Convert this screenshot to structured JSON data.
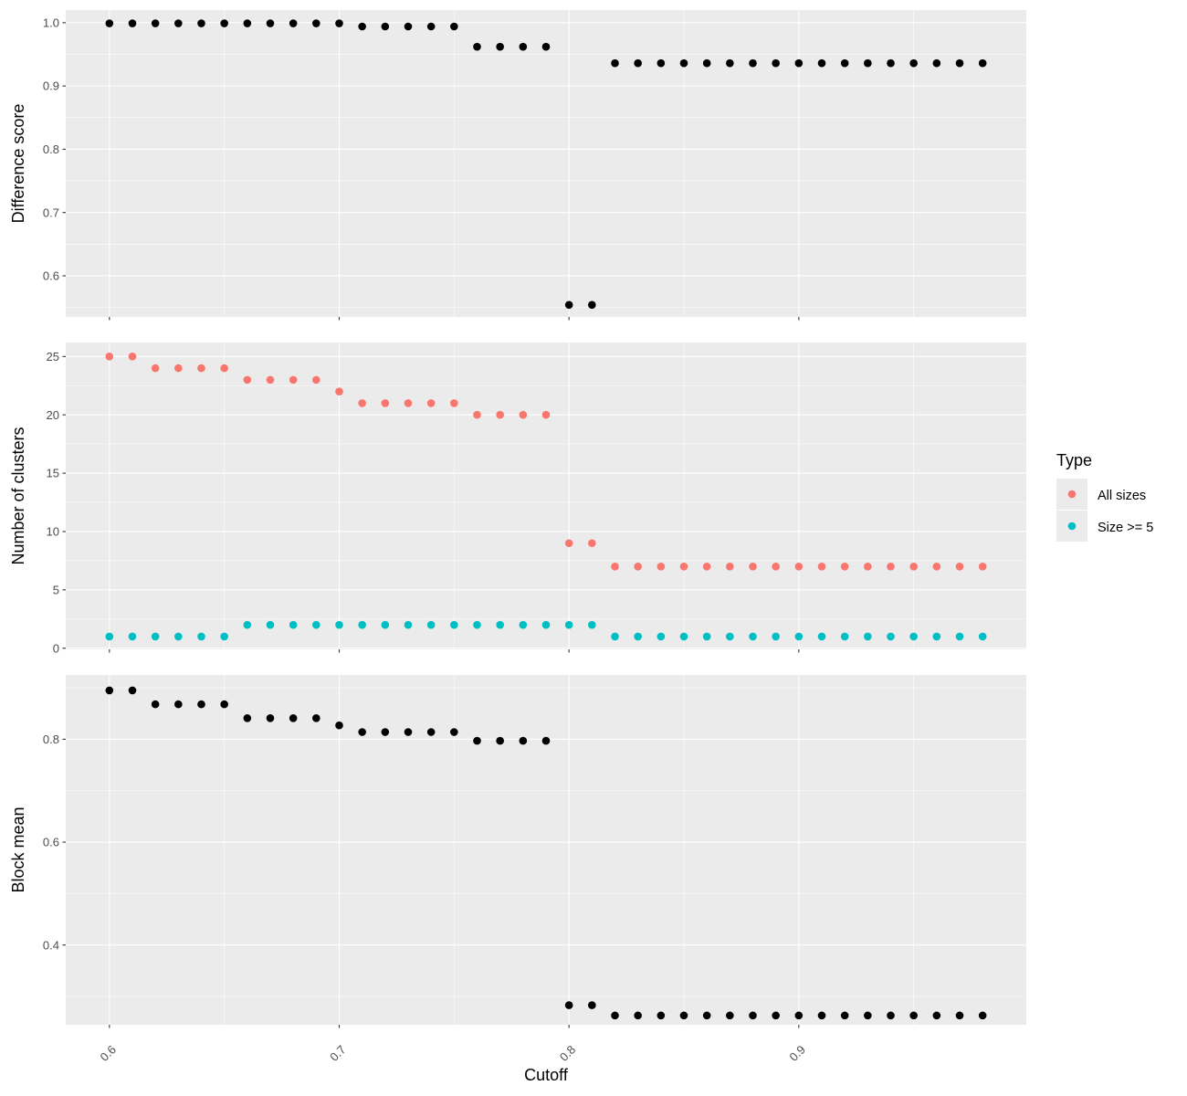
{
  "chart_data": [
    {
      "type": "scatter",
      "panel": "difference",
      "ylabel": "Difference score",
      "ylim": [
        0.535,
        1.02
      ],
      "yticks": [
        0.6,
        0.7,
        0.8,
        0.9,
        1.0
      ],
      "ytick_labels": [
        "0.6",
        "0.7",
        "0.8",
        "0.9",
        "1.0"
      ],
      "x": [
        0.6,
        0.61,
        0.62,
        0.63,
        0.64,
        0.65,
        0.66,
        0.67,
        0.68,
        0.69,
        0.7,
        0.71,
        0.72,
        0.73,
        0.74,
        0.75,
        0.76,
        0.77,
        0.78,
        0.79,
        0.8,
        0.81,
        0.82,
        0.83,
        0.84,
        0.85,
        0.86,
        0.87,
        0.88,
        0.89,
        0.9,
        0.91,
        0.92,
        0.93,
        0.94,
        0.95,
        0.96,
        0.97,
        0.98
      ],
      "series": [
        {
          "color": "#000000",
          "values": [
            0.999,
            0.999,
            0.999,
            0.999,
            0.999,
            0.999,
            0.999,
            0.999,
            0.999,
            0.999,
            0.999,
            0.994,
            0.994,
            0.994,
            0.994,
            0.994,
            0.962,
            0.962,
            0.962,
            0.962,
            0.554,
            0.554,
            0.936,
            0.936,
            0.936,
            0.936,
            0.936,
            0.936,
            0.936,
            0.936,
            0.936,
            0.936,
            0.936,
            0.936,
            0.936,
            0.936,
            0.936,
            0.936,
            0.936
          ]
        }
      ]
    },
    {
      "type": "scatter",
      "panel": "clusters",
      "ylabel": "Number of clusters",
      "ylim": [
        -0.1,
        26.2
      ],
      "yticks": [
        0,
        5,
        10,
        15,
        20,
        25
      ],
      "ytick_labels": [
        "0",
        "5",
        "10",
        "15",
        "20",
        "25"
      ],
      "x": [
        0.6,
        0.61,
        0.62,
        0.63,
        0.64,
        0.65,
        0.66,
        0.67,
        0.68,
        0.69,
        0.7,
        0.71,
        0.72,
        0.73,
        0.74,
        0.75,
        0.76,
        0.77,
        0.78,
        0.79,
        0.8,
        0.81,
        0.82,
        0.83,
        0.84,
        0.85,
        0.86,
        0.87,
        0.88,
        0.89,
        0.9,
        0.91,
        0.92,
        0.93,
        0.94,
        0.95,
        0.96,
        0.97,
        0.98
      ],
      "series": [
        {
          "name": "All sizes",
          "color": "#F8766D",
          "values": [
            25,
            25,
            24,
            24,
            24,
            24,
            23,
            23,
            23,
            23,
            22,
            21,
            21,
            21,
            21,
            21,
            20,
            20,
            20,
            20,
            9,
            9,
            7,
            7,
            7,
            7,
            7,
            7,
            7,
            7,
            7,
            7,
            7,
            7,
            7,
            7,
            7,
            7,
            7
          ]
        },
        {
          "name": "Size >= 5",
          "color": "#00BFC4",
          "values": [
            1,
            1,
            1,
            1,
            1,
            1,
            2,
            2,
            2,
            2,
            2,
            2,
            2,
            2,
            2,
            2,
            2,
            2,
            2,
            2,
            2,
            2,
            1,
            1,
            1,
            1,
            1,
            1,
            1,
            1,
            1,
            1,
            1,
            1,
            1,
            1,
            1,
            1,
            1
          ]
        }
      ]
    },
    {
      "type": "scatter",
      "panel": "block",
      "ylabel": "Block mean",
      "ylim": [
        0.245,
        0.925
      ],
      "yticks": [
        0.4,
        0.6,
        0.8
      ],
      "ytick_labels": [
        "0.4",
        "0.6",
        "0.8"
      ],
      "x": [
        0.6,
        0.61,
        0.62,
        0.63,
        0.64,
        0.65,
        0.66,
        0.67,
        0.68,
        0.69,
        0.7,
        0.71,
        0.72,
        0.73,
        0.74,
        0.75,
        0.76,
        0.77,
        0.78,
        0.79,
        0.8,
        0.81,
        0.82,
        0.83,
        0.84,
        0.85,
        0.86,
        0.87,
        0.88,
        0.89,
        0.9,
        0.91,
        0.92,
        0.93,
        0.94,
        0.95,
        0.96,
        0.97,
        0.98
      ],
      "series": [
        {
          "color": "#000000",
          "values": [
            0.895,
            0.895,
            0.868,
            0.868,
            0.868,
            0.868,
            0.841,
            0.841,
            0.841,
            0.841,
            0.827,
            0.814,
            0.814,
            0.814,
            0.814,
            0.814,
            0.797,
            0.797,
            0.797,
            0.797,
            0.283,
            0.283,
            0.263,
            0.263,
            0.263,
            0.263,
            0.263,
            0.263,
            0.263,
            0.263,
            0.263,
            0.263,
            0.263,
            0.263,
            0.263,
            0.263,
            0.263,
            0.263,
            0.263
          ]
        }
      ]
    }
  ],
  "x_axis": {
    "label": "Cutoff",
    "xlim": [
      0.581,
      0.999
    ],
    "ticks": [
      0.6,
      0.7,
      0.8,
      0.9
    ],
    "tick_labels": [
      "0.6",
      "0.7",
      "0.8",
      "0.9"
    ]
  },
  "legend": {
    "title": "Type",
    "position": "right",
    "items": [
      {
        "label": "All sizes",
        "color": "#F8766D"
      },
      {
        "label": "Size >= 5",
        "color": "#00BFC4"
      }
    ]
  },
  "colors": {
    "panel_background": "#EBEBEB",
    "grid": "#FFFFFF",
    "tick_text": "#4D4D4D"
  }
}
